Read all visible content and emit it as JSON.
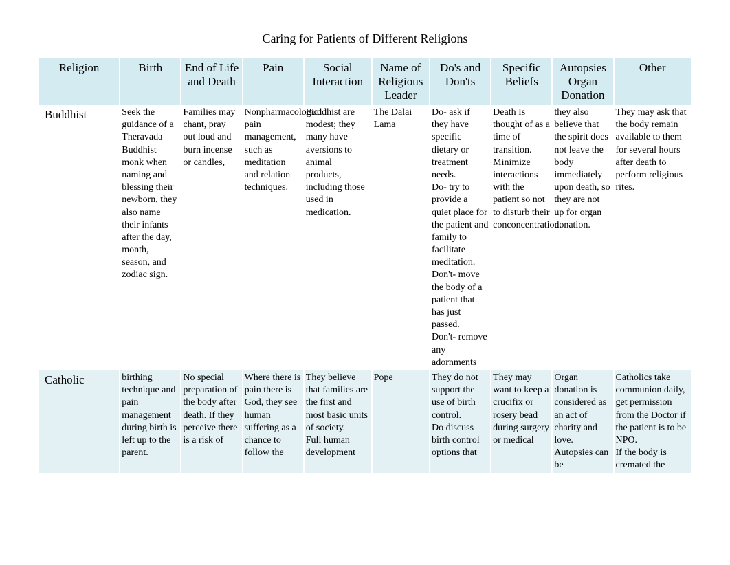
{
  "page": {
    "title": "Caring for Patients of Different Religions"
  },
  "table": {
    "columns": [
      "Religion",
      "Birth",
      "End of Life and Death",
      "Pain",
      "Social Interaction",
      "Name of Religious Leader",
      "Do's and Don'ts",
      "Specific Beliefs",
      "Autopsies Organ Donation",
      "Other"
    ],
    "rows": [
      {
        "religion": "Buddhist",
        "birth": "Seek the guidance of a Theravada Buddhist monk when naming and blessing their newborn, they also name their infants after the day, month, season, and zodiac sign.",
        "eol": "Families may chant, pray out loud and burn incense or candles,",
        "pain": "Nonpharmacologic pain management, such as meditation and relation techniques.",
        "social": "Buddhist are modest; they many have aversions to animal products, including those used in medication.",
        "leader": "The Dalai Lama",
        "dos": "Do- ask if they have specific dietary or treatment needs.\nDo- try to provide a quiet place for the patient and family to facilitate meditation.\nDon't- move the body of a patient that has just passed.\nDon't- remove any adornments",
        "beliefs": "Death Is thought of as a time of transition. Minimize interactions with the patient so not to disturb their conconcentration.",
        "autopsy": "they also believe that the spirit does not leave the body immediately upon death, so they are not up for organ donation.",
        "other": "They may ask that the body remain available to them for several hours after death to perform religious rites."
      },
      {
        "religion": "Catholic",
        "birth": "birthing technique and pain management during birth is left up to the parent.",
        "eol": "No special preparation of the body after death. If they perceive there is a risk of",
        "pain": "Where there is pain there is God, they see human suffering as a chance to follow the",
        "social": "They believe that families are the first and most basic units of society.\nFull human development",
        "leader": "Pope",
        "dos": "They do not support the use of birth control.\nDo discuss birth control options that",
        "beliefs": "They may want to keep a crucifix or rosery bead during surgery or medical",
        "autopsy": "Organ donation is considered as an act of charity and love.\nAutopsies can be",
        "other": "Catholics take communion daily, get permission from the Doctor if the patient is to be NPO.\nIf the body is cremated the"
      }
    ]
  },
  "style": {
    "header_bg": "#d4ecf1",
    "row_even_bg": "#e3f1f4",
    "row_odd_bg": "#ffffff",
    "page_bg": "#ffffff",
    "title_fontsize": 18,
    "header_fontsize": 17,
    "cell_fontsize": 14,
    "font_family": "Times New Roman"
  }
}
